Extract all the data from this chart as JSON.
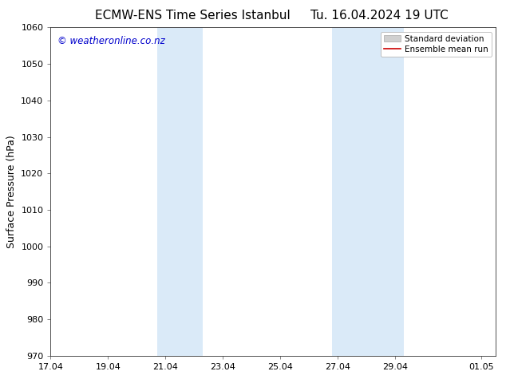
{
  "title_left": "ECMW-ENS Time Series Istanbul",
  "title_right": "Tu. 16.04.2024 19 UTC",
  "ylabel": "Surface Pressure (hPa)",
  "ylim": [
    970,
    1060
  ],
  "yticks": [
    970,
    980,
    990,
    1000,
    1010,
    1020,
    1030,
    1040,
    1050,
    1060
  ],
  "xlim": [
    0,
    15.5
  ],
  "xtick_positions": [
    0,
    2,
    4,
    6,
    8,
    10,
    12,
    15
  ],
  "xtick_labels": [
    "17.04",
    "19.04",
    "21.04",
    "23.04",
    "25.04",
    "27.04",
    "29.04",
    "01.05"
  ],
  "shaded_regions": [
    {
      "x_start": 3.7,
      "x_end": 5.3
    },
    {
      "x_start": 9.8,
      "x_end": 12.3
    }
  ],
  "shaded_color": "#daeaf8",
  "background_color": "#ffffff",
  "watermark_text": "© weatheronline.co.nz",
  "watermark_color": "#0000cc",
  "legend_std_label": "Standard deviation",
  "legend_mean_label": "Ensemble mean run",
  "legend_std_facecolor": "#d0d0d0",
  "legend_std_edgecolor": "#aaaaaa",
  "legend_mean_color": "#cc0000",
  "title_fontsize": 11,
  "tick_fontsize": 8,
  "ylabel_fontsize": 9,
  "watermark_fontsize": 8.5,
  "legend_fontsize": 7.5
}
